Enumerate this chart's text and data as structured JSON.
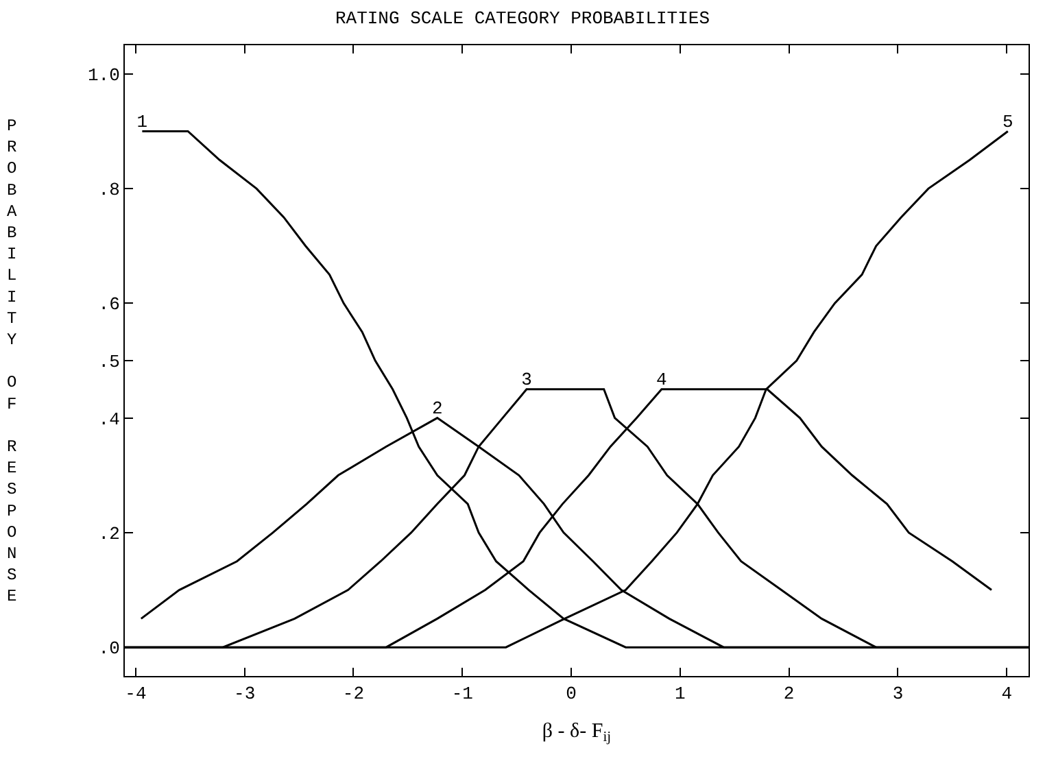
{
  "chart_data": {
    "type": "line",
    "title": "RATING SCALE CATEGORY PROBABILITIES",
    "xlabel": "β - δ- F$_{ij}$",
    "ylabel": "PROBABILITY OF RESPONSE",
    "xlim": [
      -4.1,
      4.2
    ],
    "xticks": [
      -4,
      -3,
      -2,
      -1,
      0,
      1,
      2,
      3,
      4
    ],
    "ylim": [
      -0.05,
      1.05
    ],
    "yticks": [
      {
        "value": 0,
        "label": ".0"
      },
      {
        "value": 0.2,
        "label": ".2"
      },
      {
        "value": 0.4,
        "label": ".4"
      },
      {
        "value": 0.5,
        "label": ".5"
      },
      {
        "value": 0.6,
        "label": ".6"
      },
      {
        "value": 0.8,
        "label": ".8"
      },
      {
        "value": 1,
        "label": "1.0"
      }
    ],
    "grid": false,
    "legend": false,
    "marker": "none",
    "line_style": "solid",
    "series": [
      {
        "name": "1",
        "color": "#000000",
        "x": [
          -3.94,
          -3.52,
          -3.23,
          -2.89,
          -2.64,
          -2.44,
          -2.22,
          -2.09,
          -1.92,
          -1.8,
          -1.64,
          -1.51,
          -1.4,
          -1.23,
          -0.95,
          -0.85,
          -0.69,
          -0.39,
          -0.07,
          0.5,
          4.2
        ],
        "values": [
          0.9,
          0.9,
          0.85,
          0.8,
          0.75,
          0.7,
          0.65,
          0.6,
          0.55,
          0.5,
          0.45,
          0.4,
          0.35,
          0.3,
          0.25,
          0.2,
          0.15,
          0.1,
          0.05,
          0,
          0
        ]
      },
      {
        "name": "2",
        "color": "#000000",
        "x": [
          -3.95,
          -3.6,
          -3.07,
          -2.74,
          -2.43,
          -2.14,
          -1.7,
          -1.23,
          -0.85,
          -0.48,
          -0.25,
          -0.07,
          0.2,
          0.46,
          0.9,
          1.4,
          4.2
        ],
        "values": [
          0.05,
          0.1,
          0.15,
          0.2,
          0.25,
          0.3,
          0.35,
          0.4,
          0.35,
          0.3,
          0.25,
          0.2,
          0.15,
          0.1,
          0.05,
          0,
          0
        ]
      },
      {
        "name": "3",
        "color": "#000000",
        "x": [
          -4.1,
          -3.2,
          -2.54,
          -2.05,
          -1.75,
          -1.47,
          -1.23,
          -0.98,
          -0.85,
          -0.63,
          -0.41,
          -0.03,
          0.3,
          0.4,
          0.7,
          0.88,
          1.16,
          1.35,
          1.56,
          1.93,
          2.3,
          2.8,
          4.2
        ],
        "values": [
          0,
          0,
          0.05,
          0.1,
          0.15,
          0.2,
          0.25,
          0.3,
          0.35,
          0.4,
          0.45,
          0.45,
          0.45,
          0.4,
          0.35,
          0.3,
          0.25,
          0.2,
          0.15,
          0.1,
          0.05,
          0,
          0
        ]
      },
      {
        "name": "4",
        "color": "#000000",
        "x": [
          -4.1,
          -1.7,
          -1.23,
          -0.79,
          -0.44,
          -0.29,
          -0.08,
          0.16,
          0.36,
          0.6,
          0.83,
          1.3,
          1.8,
          2.1,
          2.3,
          2.58,
          2.9,
          3.1,
          3.5,
          3.86
        ],
        "values": [
          0,
          0,
          0.05,
          0.1,
          0.15,
          0.2,
          0.25,
          0.3,
          0.35,
          0.4,
          0.45,
          0.45,
          0.45,
          0.4,
          0.35,
          0.3,
          0.25,
          0.2,
          0.15,
          0.1
        ]
      },
      {
        "name": "5",
        "color": "#000000",
        "x": [
          -4.1,
          -0.6,
          -0.06,
          0.5,
          0.74,
          0.97,
          1.16,
          1.3,
          1.54,
          1.69,
          1.79,
          2.07,
          2.23,
          2.42,
          2.67,
          2.8,
          3.03,
          3.28,
          3.66,
          4.01
        ],
        "values": [
          0,
          0,
          0.05,
          0.1,
          0.15,
          0.2,
          0.25,
          0.3,
          0.35,
          0.4,
          0.45,
          0.5,
          0.55,
          0.6,
          0.65,
          0.7,
          0.75,
          0.8,
          0.85,
          0.9
        ]
      }
    ]
  }
}
